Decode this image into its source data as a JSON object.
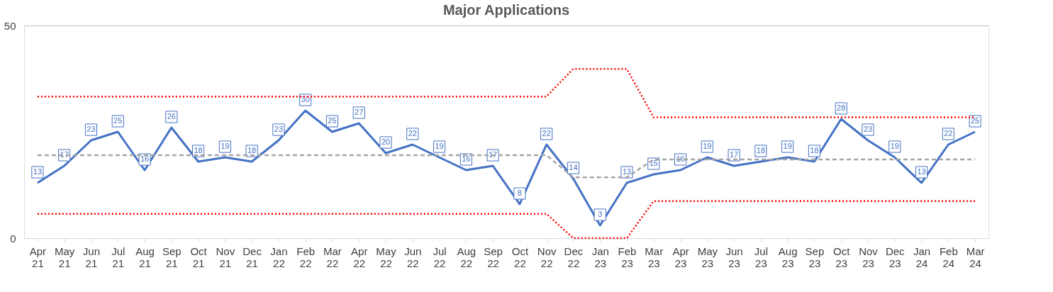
{
  "chart_data": {
    "type": "line",
    "title": "Major Applications",
    "categories": [
      "Apr 21",
      "May 21",
      "Jun 21",
      "Jul 21",
      "Aug 21",
      "Sep 21",
      "Oct 21",
      "Nov 21",
      "Dec 21",
      "Jan 22",
      "Feb 22",
      "Mar 22",
      "Apr 22",
      "May 22",
      "Jun 22",
      "Jul 22",
      "Aug 22",
      "Sep 22",
      "Oct 22",
      "Nov 22",
      "Dec 22",
      "Jan 23",
      "Feb 23",
      "Mar 23",
      "Apr 23",
      "May 23",
      "Jun 23",
      "Jul 23",
      "Aug 23",
      "Sep 23",
      "Oct 23",
      "Nov 23",
      "Dec 23",
      "Jan 24",
      "Feb 24",
      "Mar 24"
    ],
    "series": [
      {
        "color": "#4472c4",
        "line_style": "solid",
        "data_labels": true,
        "values": [
          13,
          17,
          23,
          25,
          16,
          26,
          18,
          19,
          18,
          23,
          30,
          25,
          27,
          20,
          22,
          19,
          16,
          17,
          8,
          22,
          14,
          3,
          13,
          15,
          16,
          19,
          17,
          18,
          19,
          18,
          28,
          23,
          19,
          13,
          22,
          25
        ]
      },
      {
        "color": "#a5a5a5",
        "marker": "none",
        "line_style": "dashed",
        "values": [
          19.5,
          19.5,
          19.5,
          19.5,
          19.5,
          19.5,
          19.5,
          19.5,
          19.5,
          19.5,
          19.5,
          19.5,
          19.5,
          19.5,
          19.5,
          19.5,
          19.5,
          19.5,
          19.5,
          19.5,
          14.3,
          14.3,
          14.3,
          18.5,
          18.5,
          18.5,
          18.5,
          18.5,
          18.5,
          18.5,
          18.5,
          18.5,
          18.5,
          18.5,
          18.5,
          18.5
        ]
      },
      {
        "color": "#ff0000",
        "marker": "none",
        "line_style": "dotted",
        "values": [
          33.3,
          33.3,
          33.3,
          33.3,
          33.3,
          33.3,
          33.3,
          33.3,
          33.3,
          33.3,
          33.3,
          33.3,
          33.3,
          33.3,
          33.3,
          33.3,
          33.3,
          33.3,
          33.3,
          33.3,
          39.8,
          39.8,
          39.8,
          28.4,
          28.4,
          28.4,
          28.4,
          28.4,
          28.4,
          28.4,
          28.4,
          28.4,
          28.4,
          28.4,
          28.4,
          28.4
        ]
      },
      {
        "color": "#ff0000",
        "marker": "none",
        "line_style": "dotted",
        "values": [
          5.7,
          5.7,
          5.7,
          5.7,
          5.7,
          5.7,
          5.7,
          5.7,
          5.7,
          5.7,
          5.7,
          5.7,
          5.7,
          5.7,
          5.7,
          5.7,
          5.7,
          5.7,
          5.7,
          5.7,
          0,
          0,
          0,
          8.7,
          8.7,
          8.7,
          8.7,
          8.7,
          8.7,
          8.7,
          8.7,
          8.7,
          8.7,
          8.7,
          8.7,
          8.7
        ]
      }
    ],
    "ylim": [
      0,
      50
    ],
    "yticks": [
      0,
      50
    ],
    "grid": "y"
  }
}
